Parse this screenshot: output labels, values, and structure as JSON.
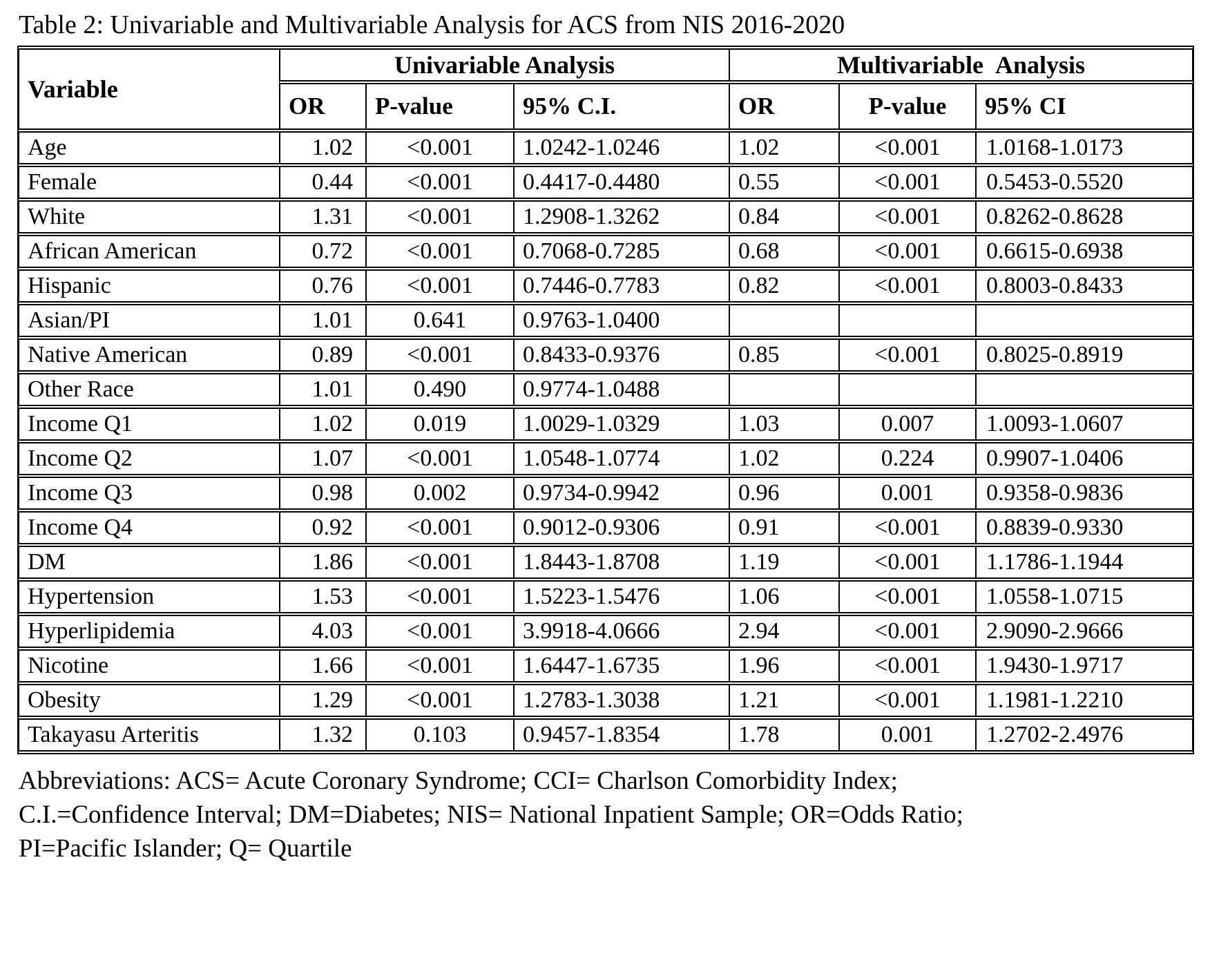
{
  "title": "Table 2: Univariable and Multivariable Analysis for ACS from NIS 2016-2020",
  "table": {
    "variable_header": "Variable",
    "group_headers": [
      "Univariable Analysis",
      "Multivariable Analysis"
    ],
    "sub_headers": [
      "OR",
      "P-value",
      "95% C.I.",
      "OR",
      "P-value",
      "95% CI"
    ],
    "rows": [
      {
        "variable": "Age",
        "uni_or": "1.02",
        "uni_p": "<0.001",
        "uni_ci": "1.0242-1.0246",
        "multi_or": "1.02",
        "multi_p": "<0.001",
        "multi_ci": "1.0168-1.0173"
      },
      {
        "variable": "Female",
        "uni_or": "0.44",
        "uni_p": "<0.001",
        "uni_ci": "0.4417-0.4480",
        "multi_or": "0.55",
        "multi_p": "<0.001",
        "multi_ci": "0.5453-0.5520"
      },
      {
        "variable": "White",
        "uni_or": "1.31",
        "uni_p": "<0.001",
        "uni_ci": "1.2908-1.3262",
        "multi_or": "0.84",
        "multi_p": "<0.001",
        "multi_ci": "0.8262-0.8628"
      },
      {
        "variable": "African American",
        "uni_or": "0.72",
        "uni_p": "<0.001",
        "uni_ci": "0.7068-0.7285",
        "multi_or": "0.68",
        "multi_p": "<0.001",
        "multi_ci": "0.6615-0.6938"
      },
      {
        "variable": "Hispanic",
        "uni_or": "0.76",
        "uni_p": "<0.001",
        "uni_ci": "0.7446-0.7783",
        "multi_or": "0.82",
        "multi_p": "<0.001",
        "multi_ci": "0.8003-0.8433"
      },
      {
        "variable": "Asian/PI",
        "uni_or": "1.01",
        "uni_p": "0.641",
        "uni_ci": "0.9763-1.0400",
        "multi_or": "",
        "multi_p": "",
        "multi_ci": ""
      },
      {
        "variable": "Native American",
        "uni_or": "0.89",
        "uni_p": "<0.001",
        "uni_ci": "0.8433-0.9376",
        "multi_or": "0.85",
        "multi_p": "<0.001",
        "multi_ci": "0.8025-0.8919"
      },
      {
        "variable": "Other Race",
        "uni_or": "1.01",
        "uni_p": "0.490",
        "uni_ci": "0.9774-1.0488",
        "multi_or": "",
        "multi_p": "",
        "multi_ci": ""
      },
      {
        "variable": "Income Q1",
        "uni_or": "1.02",
        "uni_p": "0.019",
        "uni_ci": "1.0029-1.0329",
        "multi_or": "1.03",
        "multi_p": "0.007",
        "multi_ci": "1.0093-1.0607"
      },
      {
        "variable": "Income Q2",
        "uni_or": "1.07",
        "uni_p": "<0.001",
        "uni_ci": "1.0548-1.0774",
        "multi_or": "1.02",
        "multi_p": "0.224",
        "multi_ci": "0.9907-1.0406"
      },
      {
        "variable": "Income Q3",
        "uni_or": "0.98",
        "uni_p": "0.002",
        "uni_ci": "0.9734-0.9942",
        "multi_or": "0.96",
        "multi_p": "0.001",
        "multi_ci": "0.9358-0.9836"
      },
      {
        "variable": "Income Q4",
        "uni_or": "0.92",
        "uni_p": "<0.001",
        "uni_ci": "0.9012-0.9306",
        "multi_or": "0.91",
        "multi_p": "<0.001",
        "multi_ci": "0.8839-0.9330"
      },
      {
        "variable": "DM",
        "uni_or": "1.86",
        "uni_p": "<0.001",
        "uni_ci": "1.8443-1.8708",
        "multi_or": "1.19",
        "multi_p": "<0.001",
        "multi_ci": "1.1786-1.1944"
      },
      {
        "variable": "Hypertension",
        "uni_or": "1.53",
        "uni_p": "<0.001",
        "uni_ci": "1.5223-1.5476",
        "multi_or": "1.06",
        "multi_p": "<0.001",
        "multi_ci": "1.0558-1.0715"
      },
      {
        "variable": "Hyperlipidemia",
        "uni_or": "4.03",
        "uni_p": "<0.001",
        "uni_ci": "3.9918-4.0666",
        "multi_or": "2.94",
        "multi_p": "<0.001",
        "multi_ci": "2.9090-2.9666"
      },
      {
        "variable": "Nicotine",
        "uni_or": "1.66",
        "uni_p": "<0.001",
        "uni_ci": "1.6447-1.6735",
        "multi_or": "1.96",
        "multi_p": "<0.001",
        "multi_ci": "1.9430-1.9717"
      },
      {
        "variable": "Obesity",
        "uni_or": "1.29",
        "uni_p": "<0.001",
        "uni_ci": "1.2783-1.3038",
        "multi_or": "1.21",
        "multi_p": "<0.001",
        "multi_ci": "1.1981-1.2210"
      },
      {
        "variable": "Takayasu Arteritis",
        "uni_or": "1.32",
        "uni_p": "0.103",
        "uni_ci": "0.9457-1.8354",
        "multi_or": "1.78",
        "multi_p": "0.001",
        "multi_ci": "1.2702-2.4976"
      }
    ]
  },
  "footnote": {
    "lines": [
      "Abbreviations: ACS= Acute Coronary Syndrome; CCI= Charlson Comorbidity Index;",
      "C.I.=Confidence Interval; DM=Diabetes; NIS= National Inpatient Sample; OR=Odds Ratio;",
      "PI=Pacific Islander; Q= Quartile"
    ]
  }
}
